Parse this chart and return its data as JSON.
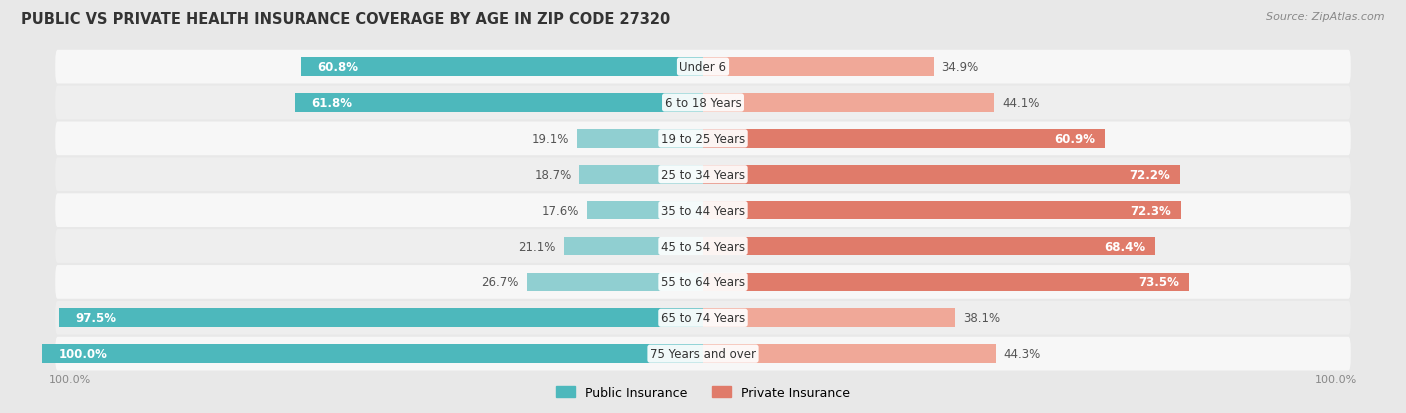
{
  "title": "PUBLIC VS PRIVATE HEALTH INSURANCE COVERAGE BY AGE IN ZIP CODE 27320",
  "source": "Source: ZipAtlas.com",
  "categories": [
    "Under 6",
    "6 to 18 Years",
    "19 to 25 Years",
    "25 to 34 Years",
    "35 to 44 Years",
    "45 to 54 Years",
    "55 to 64 Years",
    "65 to 74 Years",
    "75 Years and over"
  ],
  "public_values": [
    60.8,
    61.8,
    19.1,
    18.7,
    17.6,
    21.1,
    26.7,
    97.5,
    100.0
  ],
  "private_values": [
    34.9,
    44.1,
    60.9,
    72.2,
    72.3,
    68.4,
    73.5,
    38.1,
    44.3
  ],
  "public_color_dark": "#4db8bc",
  "public_color_light": "#90cfd1",
  "private_color_dark": "#e07b6a",
  "private_color_light": "#f0a898",
  "bar_height": 0.52,
  "bg_color": "#e8e8e8",
  "row_bg_light": "#f7f7f7",
  "row_bg_dark": "#eeeeee",
  "label_fontsize": 8.5,
  "title_fontsize": 10.5,
  "legend_label_public": "Public Insurance",
  "legend_label_private": "Private Insurance",
  "axis_max": 100.0,
  "pub_dark_threshold": 50.0,
  "priv_dark_threshold": 50.0
}
